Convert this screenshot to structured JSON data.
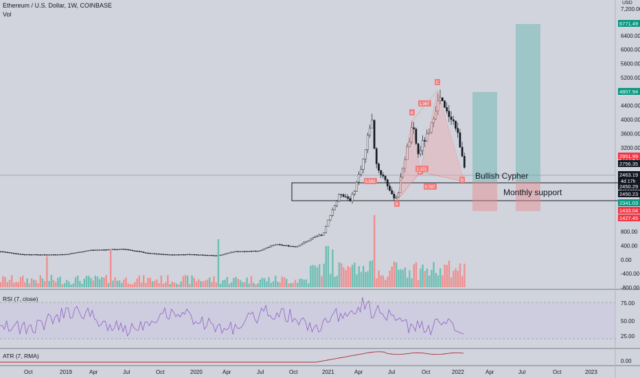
{
  "header": {
    "title": "Ethereum / U.S. Dollar, 1W, COINBASE",
    "volume_label": "Vol",
    "currency": "USD"
  },
  "panes": {
    "rsi_label": "RSI (7, close)",
    "atr_label": "ATR (7, RMA)"
  },
  "annotations": {
    "pattern": "Bullish Cypher",
    "support": "Monthly support",
    "point_labels": [
      "X",
      "A",
      "B",
      "C",
      "D"
    ],
    "ratios": [
      "1.367",
      "0.593",
      "0.787",
      "1.121"
    ]
  },
  "price_axis": {
    "ticks": [
      "7,200.00",
      "6400.00",
      "6000.00",
      "5600.00",
      "5200.00",
      "4800.00",
      "4400.00",
      "4000.00",
      "3600.00",
      "3200.00",
      "2800.00",
      "2400.00",
      "2000.00",
      "1600.00",
      "1200.00",
      "800.00",
      "400.00",
      "0.00",
      "-400.00",
      "-800.00"
    ],
    "badges": [
      {
        "value": "6771.49",
        "color": "#089981"
      },
      {
        "value": "4807.94",
        "color": "#089981"
      },
      {
        "value": "2951.99",
        "color": "#f23645"
      },
      {
        "value": "2756.35",
        "color": "#131722"
      },
      {
        "value": "2463.19",
        "color": "#131722",
        "sub": "4d 17h"
      },
      {
        "value": "2450.29",
        "color": "#131722"
      },
      {
        "value": "2450.23",
        "color": "#131722"
      },
      {
        "value": "2341.03",
        "color": "#089981"
      },
      {
        "value": "1433.04",
        "color": "#f23645"
      },
      {
        "value": "1427.45",
        "color": "#f23645"
      }
    ]
  },
  "rsi_axis": {
    "ticks": [
      "75.00",
      "50.00",
      "25.00"
    ]
  },
  "atr_axis": {
    "ticks": [
      "0.00"
    ]
  },
  "time_axis": {
    "labels": [
      "Oct",
      "2019",
      "Apr",
      "Jul",
      "Oct",
      "2020",
      "Apr",
      "Jul",
      "Oct",
      "2021",
      "Apr",
      "Jul",
      "Oct",
      "2022",
      "Apr",
      "Jul",
      "Oct",
      "2023"
    ]
  },
  "chart_data": {
    "type": "candlestick",
    "title": "Ethereum / U.S. Dollar, 1W, COINBASE",
    "ylim": [
      -800,
      7200
    ],
    "x_range": [
      "2018-09",
      "2023-01"
    ],
    "price_key_points": [
      {
        "date": "2018-09",
        "close": 230
      },
      {
        "date": "2019-03",
        "close": 140
      },
      {
        "date": "2019-06",
        "close": 300
      },
      {
        "date": "2019-12",
        "close": 130
      },
      {
        "date": "2020-03",
        "close": 110
      },
      {
        "date": "2020-08",
        "close": 430
      },
      {
        "date": "2020-12",
        "close": 730
      },
      {
        "date": "2021-02",
        "close": 1900
      },
      {
        "date": "2021-05",
        "close": 4100
      },
      {
        "date": "2021-06",
        "close": 1800
      },
      {
        "date": "2021-07",
        "close": 1800
      },
      {
        "date": "2021-09",
        "close": 3900
      },
      {
        "date": "2021-11",
        "close": 4700
      },
      {
        "date": "2022-01",
        "close": 2463.19
      }
    ],
    "harmonic_pattern": {
      "name": "Bullish Cypher",
      "X": 1720,
      "A": 4030,
      "B": 2650,
      "C": 4860,
      "D": 2450
    },
    "targets": [
      {
        "from": 2450,
        "to": 4807.94,
        "stop": 1433.04
      },
      {
        "from": 2450,
        "to": 6771.49,
        "stop": 1427.45
      }
    ],
    "support_zone": [
      2341.03,
      2950
    ],
    "rsi": {
      "ylim": [
        0,
        100
      ],
      "bands": [
        20,
        80
      ],
      "latest": 23
    },
    "atr": {
      "latest_level": "elevated since 2021"
    }
  }
}
